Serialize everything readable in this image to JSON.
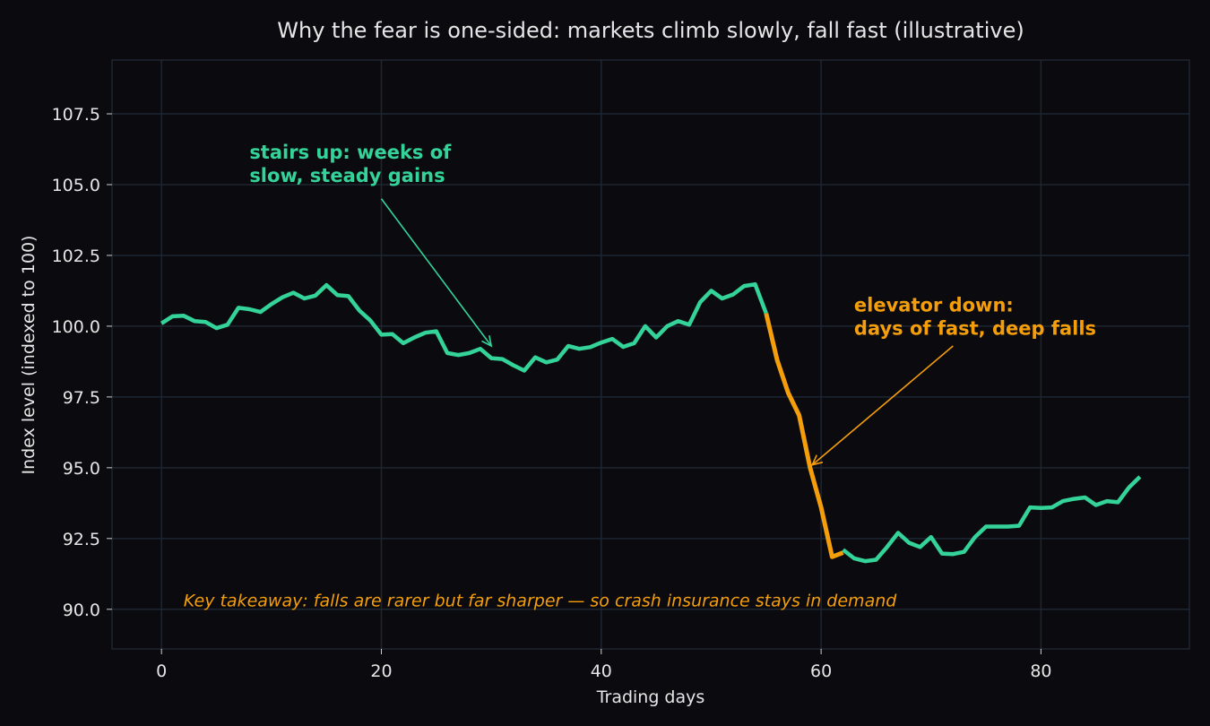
{
  "chart_data": {
    "type": "line",
    "title": "Why the fear is one-sided: markets climb slowly, fall fast (illustrative)",
    "xlabel": "Trading days",
    "ylabel": "Index level (indexed to 100)",
    "xlim": [
      -4.5,
      93.5
    ],
    "ylim": [
      88.6,
      109.4
    ],
    "xticks": [
      0,
      20,
      40,
      60,
      80
    ],
    "yticks": [
      90.0,
      92.5,
      95.0,
      97.5,
      100.0,
      102.5,
      105.0,
      107.5
    ],
    "xtick_labels": [
      "0",
      "20",
      "40",
      "60",
      "80"
    ],
    "ytick_labels": [
      "90.0",
      "92.5",
      "95.0",
      "97.5",
      "100.0",
      "102.5",
      "105.0",
      "107.5"
    ],
    "grid": true,
    "series": [
      {
        "color": "#34d399",
        "x": [
          0,
          1,
          2,
          3,
          4,
          5,
          6,
          7,
          8,
          9,
          10,
          11,
          12,
          13,
          14,
          15,
          16,
          17,
          18,
          19,
          20,
          21,
          22,
          23,
          24,
          25,
          26,
          27,
          28,
          29,
          30,
          31,
          32,
          33,
          34,
          35,
          36,
          37,
          38,
          39,
          40,
          41,
          42,
          43,
          44,
          45,
          46,
          47,
          48,
          49,
          50,
          51,
          52,
          53,
          54,
          55
        ],
        "values": [
          100.1,
          100.35,
          100.37,
          100.18,
          100.15,
          99.93,
          100.05,
          100.65,
          100.6,
          100.5,
          100.78,
          101.02,
          101.18,
          100.98,
          101.08,
          101.45,
          101.1,
          101.06,
          100.55,
          100.2,
          99.7,
          99.72,
          99.4,
          99.6,
          99.77,
          99.82,
          99.05,
          98.98,
          99.05,
          99.2,
          98.87,
          98.84,
          98.62,
          98.43,
          98.9,
          98.72,
          98.82,
          99.3,
          99.2,
          99.26,
          99.42,
          99.55,
          99.27,
          99.4,
          100.0,
          99.6,
          100.0,
          100.18,
          100.05,
          100.85,
          101.25,
          100.98,
          101.12,
          101.42,
          101.48,
          100.45
        ]
      },
      {
        "color": "#f59e0b",
        "x": [
          55,
          56,
          57,
          58,
          59,
          60,
          61,
          62
        ],
        "values": [
          100.45,
          98.8,
          97.65,
          96.85,
          95.0,
          93.6,
          91.85,
          92.0
        ]
      },
      {
        "color": "#34d399",
        "x": [
          62,
          63,
          64,
          65,
          66,
          67,
          68,
          69,
          70,
          71,
          72,
          73,
          74,
          75,
          76,
          77,
          78,
          79,
          80,
          81,
          82,
          83,
          84,
          85,
          86,
          87,
          88,
          89
        ],
        "values": [
          92.1,
          91.8,
          91.7,
          91.75,
          92.2,
          92.7,
          92.35,
          92.2,
          92.55,
          91.97,
          91.95,
          92.03,
          92.55,
          92.92,
          92.92,
          92.92,
          92.95,
          93.6,
          93.58,
          93.6,
          93.82,
          93.9,
          93.95,
          93.68,
          93.82,
          93.78,
          94.3,
          94.68
        ]
      }
    ],
    "annotations": [
      {
        "text_lines": [
          "stairs up: weeks of",
          "slow, steady gains"
        ],
        "color": "#34d399",
        "text_at": [
          8,
          105.1
        ],
        "arrow_from": [
          20,
          104.5
        ],
        "arrow_to": [
          30,
          99.3
        ]
      },
      {
        "text_lines": [
          "elevator down:",
          "days of fast, deep falls"
        ],
        "color": "#f59e0b",
        "text_at": [
          63,
          99.7
        ],
        "arrow_from": [
          72,
          99.3
        ],
        "arrow_to": [
          59.2,
          95.1
        ]
      }
    ],
    "takeaway": {
      "text": "Key takeaway: falls are rarer but far sharper — so crash insurance stays in demand",
      "color": "#f59e0b",
      "at": [
        2,
        90.1
      ]
    }
  }
}
